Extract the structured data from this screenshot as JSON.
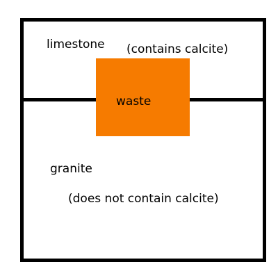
{
  "layers": {
    "top": {
      "name": "limestone",
      "note": "(contains calcite)"
    },
    "bottom": {
      "name": "granite",
      "note": "(does not contain calcite)"
    }
  },
  "waste": {
    "label": "waste",
    "color": "#f67b00"
  },
  "colors": {
    "border": "#000000",
    "background": "#ffffff"
  }
}
